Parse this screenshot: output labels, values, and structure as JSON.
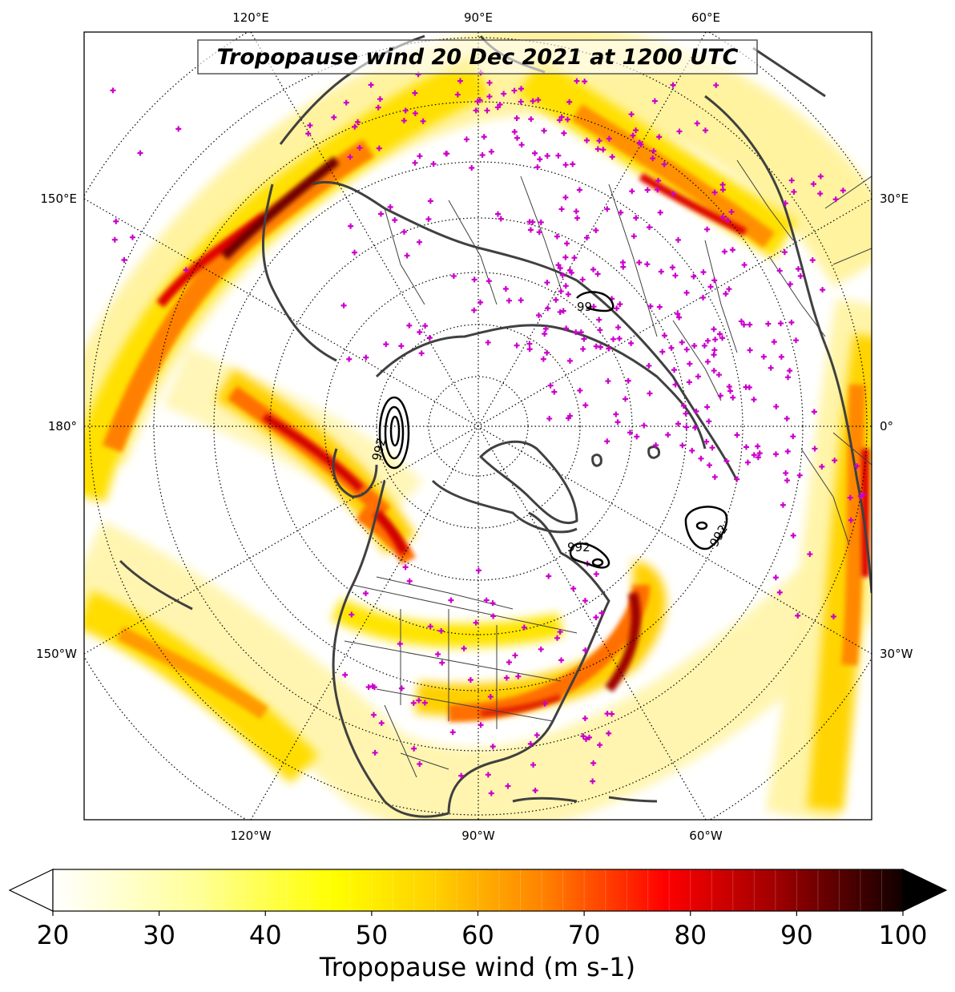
{
  "title": "Tropopause wind 20 Dec 2021 at 1200 UTC",
  "colorbar": {
    "label": "Tropopause wind (m s-1)",
    "ticks": [
      "20",
      "30",
      "40",
      "50",
      "60",
      "70",
      "80",
      "90",
      "100"
    ],
    "min": 20,
    "max": 100,
    "extend": "both",
    "colormap": "hot_r",
    "stops": [
      "#ffffff",
      "#ffff66",
      "#ffd000",
      "#ff8000",
      "#ff0000",
      "#b00000",
      "#600000",
      "#000000"
    ]
  },
  "map": {
    "projection": "north polar stereographic",
    "top_labels": [
      "120°E",
      "90°E",
      "60°E"
    ],
    "bottom_labels": [
      "120°W",
      "90°W",
      "60°W"
    ],
    "left_labels": [
      "150°E",
      "180°",
      "150°W"
    ],
    "right_labels": [
      "30°E",
      "0°",
      "30°W"
    ],
    "coastline_color": "#404040",
    "station_marker_color": "#cc00cc",
    "contour_color": "#000000"
  },
  "contours": {
    "variable": "surface low pressure centers",
    "labels": [
      "992",
      "992",
      "992",
      "99"
    ]
  }
}
